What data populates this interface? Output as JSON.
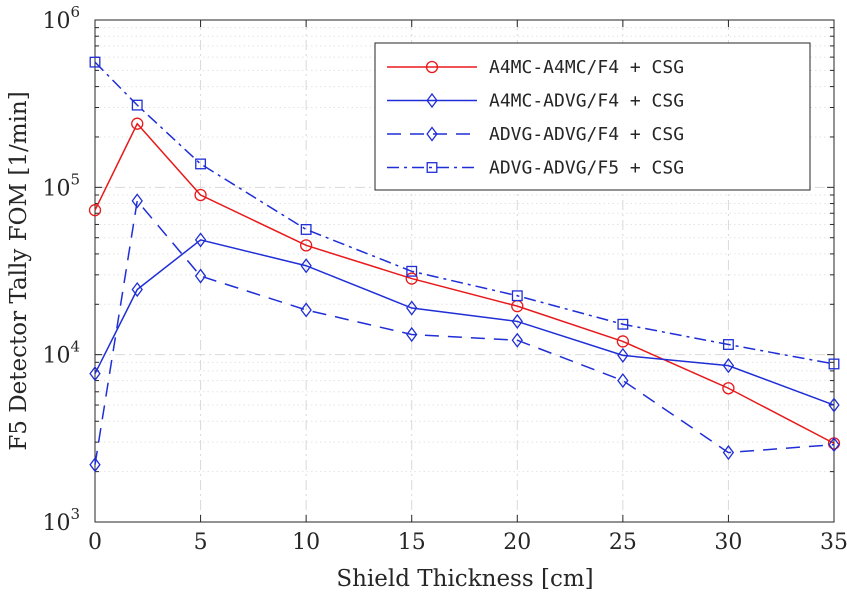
{
  "chart_data": {
    "type": "line",
    "xlabel": "Shield Thickness [cm]",
    "ylabel": "F5 Detector Tally FOM [1/min]",
    "x_ticks": [
      0,
      5,
      10,
      15,
      20,
      25,
      30,
      35
    ],
    "xlim": [
      0,
      35
    ],
    "y_scale": "log",
    "ylim": [
      1000,
      1000000
    ],
    "y_tick_labels": [
      {
        "value": 1000,
        "base": "10",
        "exp": "3"
      },
      {
        "value": 10000,
        "base": "10",
        "exp": "4"
      },
      {
        "value": 100000,
        "base": "10",
        "exp": "5"
      },
      {
        "value": 1000000,
        "base": "10",
        "exp": "6"
      }
    ],
    "grid": true,
    "legend_position": "top-right",
    "x": [
      0,
      2,
      5,
      10,
      15,
      20,
      25,
      30,
      35
    ],
    "series": [
      {
        "name": "A4MC-A4MC/F4 + CSG",
        "color": "#e8191b",
        "dash": "solid",
        "marker": "circle",
        "values": [
          73000,
          240000,
          90000,
          45000,
          28500,
          19500,
          12000,
          6300,
          2950
        ]
      },
      {
        "name": "A4MC-ADVG/F4 + CSG",
        "color": "#1f2ed6",
        "dash": "solid",
        "marker": "diamond",
        "values": [
          7700,
          24500,
          48500,
          34000,
          19000,
          15800,
          9900,
          8600,
          5000
        ]
      },
      {
        "name": "ADVG-ADVG/F4 + CSG",
        "color": "#1f2ed6",
        "dash": "dashed",
        "marker": "diamond",
        "values": [
          2200,
          83000,
          29500,
          18500,
          13200,
          12200,
          7000,
          2600,
          2900
        ]
      },
      {
        "name": "ADVG-ADVG/F5 + CSG",
        "color": "#1f2ed6",
        "dash": "dashdot",
        "marker": "square",
        "values": [
          560000,
          310000,
          138000,
          56000,
          31500,
          22500,
          15200,
          11500,
          8800
        ]
      }
    ]
  }
}
